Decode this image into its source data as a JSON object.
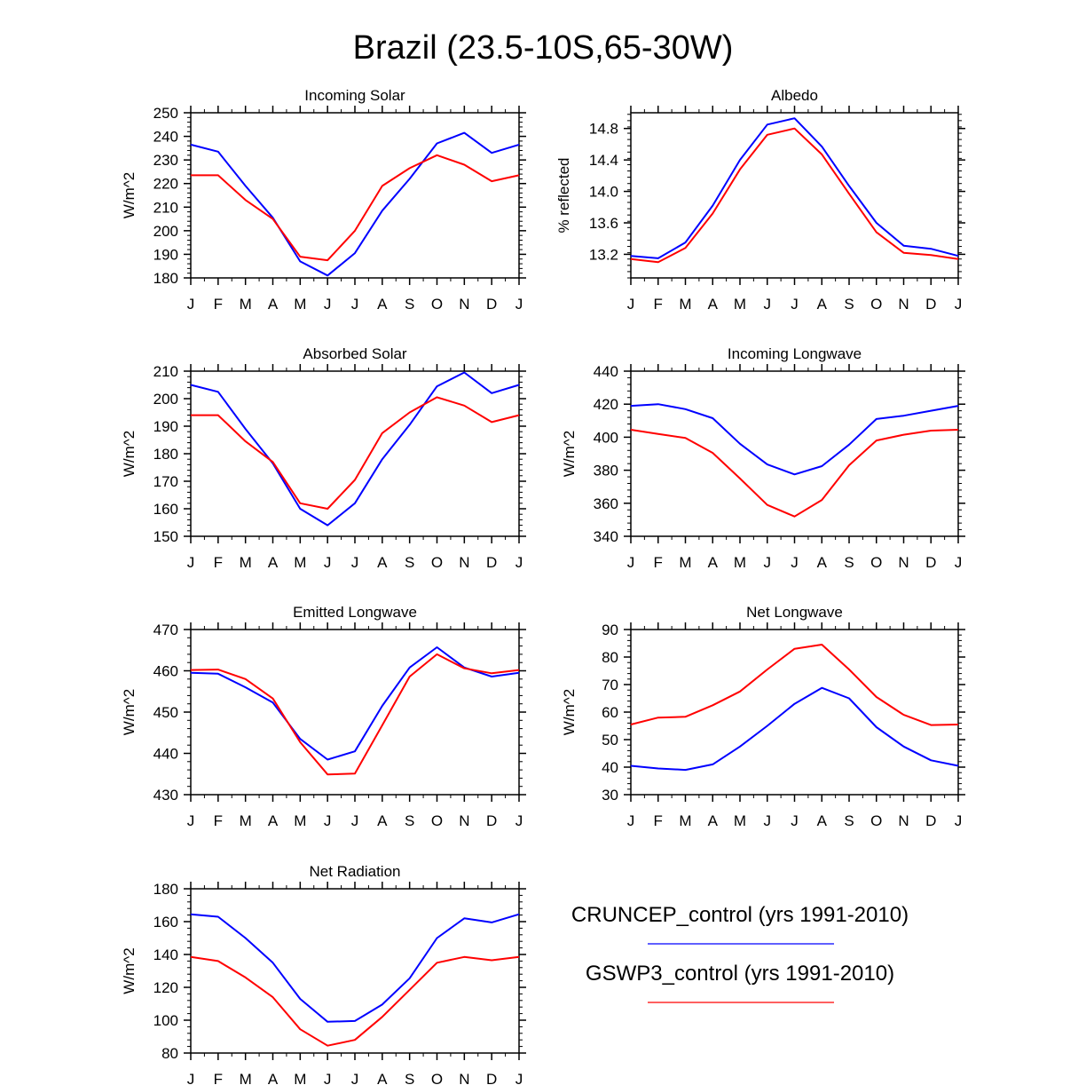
{
  "figure_title": "Brazil (23.5-10S,65-30W)",
  "months": [
    "J",
    "F",
    "M",
    "A",
    "M",
    "J",
    "J",
    "A",
    "S",
    "O",
    "N",
    "D",
    "J"
  ],
  "legend": {
    "entries": [
      {
        "label": "CRUNCEP_control (yrs 1991-2010)",
        "color": "#0000ff"
      },
      {
        "label": "GSWP3_control (yrs 1991-2010)",
        "color": "#ff0000"
      }
    ]
  },
  "chart_data": [
    {
      "type": "line",
      "title": "Incoming Solar",
      "ylabel": "W/m^2",
      "ylim": [
        180,
        250
      ],
      "yticks": [
        180,
        190,
        200,
        210,
        220,
        230,
        240,
        250
      ],
      "tick_labels": [
        "180",
        "190",
        "200",
        "210",
        "220",
        "230",
        "240",
        "250"
      ],
      "series": [
        {
          "name": "CRUNCEP_control (yrs 1991-2010)",
          "color": "#0000ff",
          "values": [
            236.5,
            233.5,
            219,
            205.5,
            187,
            181,
            190.5,
            208.5,
            222,
            237,
            241.5,
            233,
            236.5
          ]
        },
        {
          "name": "GSWP3_control (yrs 1991-2010)",
          "color": "#ff0000",
          "values": [
            223.5,
            223.5,
            213,
            205,
            189,
            187.5,
            200,
            219,
            226.5,
            232,
            228,
            221,
            223.5
          ]
        }
      ]
    },
    {
      "type": "line",
      "title": "Albedo",
      "ylabel": "% reflected",
      "ylim": [
        12.9,
        15.0
      ],
      "yticks": [
        13.2,
        13.6,
        14.0,
        14.4,
        14.8
      ],
      "tick_labels": [
        "13.2",
        "13.6",
        "14.0",
        "14.4",
        "14.8"
      ],
      "series": [
        {
          "name": "CRUNCEP_control (yrs 1991-2010)",
          "color": "#0000ff",
          "values": [
            13.18,
            13.15,
            13.35,
            13.82,
            14.4,
            14.85,
            14.93,
            14.57,
            14.07,
            13.6,
            13.31,
            13.27,
            13.18
          ]
        },
        {
          "name": "GSWP3_control (yrs 1991-2010)",
          "color": "#ff0000",
          "values": [
            13.14,
            13.1,
            13.28,
            13.72,
            14.28,
            14.72,
            14.8,
            14.47,
            13.97,
            13.48,
            13.22,
            13.19,
            13.14
          ]
        }
      ]
    },
    {
      "type": "line",
      "title": "Absorbed Solar",
      "ylabel": "W/m^2",
      "ylim": [
        150,
        210
      ],
      "yticks": [
        150,
        160,
        170,
        180,
        190,
        200,
        210
      ],
      "tick_labels": [
        "150",
        "160",
        "170",
        "180",
        "190",
        "200",
        "210"
      ],
      "series": [
        {
          "name": "CRUNCEP_control (yrs 1991-2010)",
          "color": "#0000ff",
          "values": [
            205,
            202.5,
            189,
            176.5,
            160,
            154,
            162,
            178,
            190.5,
            204.5,
            209.5,
            202,
            205
          ]
        },
        {
          "name": "GSWP3_control (yrs 1991-2010)",
          "color": "#ff0000",
          "values": [
            194,
            194,
            184.5,
            177,
            162,
            160,
            170.5,
            187.5,
            195,
            200.5,
            197.5,
            191.5,
            194
          ]
        }
      ]
    },
    {
      "type": "line",
      "title": "Incoming Longwave",
      "ylabel": "W/m^2",
      "ylim": [
        340,
        440
      ],
      "yticks": [
        340,
        360,
        380,
        400,
        420,
        440
      ],
      "tick_labels": [
        "340",
        "360",
        "380",
        "400",
        "420",
        "440"
      ],
      "series": [
        {
          "name": "CRUNCEP_control (yrs 1991-2010)",
          "color": "#0000ff",
          "values": [
            419,
            420,
            417,
            411.5,
            396,
            383.5,
            377.5,
            382.5,
            395.5,
            411,
            413,
            416,
            419
          ]
        },
        {
          "name": "GSWP3_control (yrs 1991-2010)",
          "color": "#ff0000",
          "values": [
            404.5,
            402,
            399.5,
            390.5,
            375,
            359,
            352,
            362,
            383,
            398,
            401.5,
            404,
            404.5
          ]
        }
      ]
    },
    {
      "type": "line",
      "title": "Emitted Longwave",
      "ylabel": "W/m^2",
      "ylim": [
        430,
        470
      ],
      "yticks": [
        430,
        440,
        450,
        460,
        470
      ],
      "tick_labels": [
        "430",
        "440",
        "450",
        "460",
        "470"
      ],
      "series": [
        {
          "name": "CRUNCEP_control (yrs 1991-2010)",
          "color": "#0000ff",
          "values": [
            459.5,
            459.3,
            456,
            452.3,
            443.5,
            438.5,
            440.5,
            451.5,
            460.8,
            465.7,
            460.8,
            458.6,
            459.5
          ]
        },
        {
          "name": "GSWP3_control (yrs 1991-2010)",
          "color": "#ff0000",
          "values": [
            460.2,
            460.3,
            458,
            453.3,
            442.7,
            434.9,
            435.1,
            446.8,
            458.6,
            464,
            460.6,
            459.4,
            460.2
          ]
        }
      ]
    },
    {
      "type": "line",
      "title": "Net Longwave",
      "ylabel": "W/m^2",
      "ylim": [
        30,
        90
      ],
      "yticks": [
        30,
        40,
        50,
        60,
        70,
        80,
        90
      ],
      "tick_labels": [
        "30",
        "40",
        "50",
        "60",
        "70",
        "80",
        "90"
      ],
      "series": [
        {
          "name": "CRUNCEP_control (yrs 1991-2010)",
          "color": "#0000ff",
          "values": [
            40.5,
            39.5,
            39,
            41,
            47.5,
            55,
            63,
            68.8,
            65,
            54.5,
            47.5,
            42.5,
            40.5
          ]
        },
        {
          "name": "GSWP3_control (yrs 1991-2010)",
          "color": "#ff0000",
          "values": [
            55.5,
            58,
            58.3,
            62.5,
            67.5,
            75.5,
            83,
            84.5,
            75.5,
            65.5,
            59,
            55.3,
            55.5
          ]
        }
      ]
    },
    {
      "type": "line",
      "title": "Net Radiation",
      "ylabel": "W/m^2",
      "ylim": [
        80,
        180
      ],
      "yticks": [
        80,
        100,
        120,
        140,
        160,
        180
      ],
      "tick_labels": [
        "80",
        "100",
        "120",
        "140",
        "160",
        "180"
      ],
      "series": [
        {
          "name": "CRUNCEP_control (yrs 1991-2010)",
          "color": "#0000ff",
          "values": [
            164.5,
            163,
            150,
            135,
            113,
            99,
            99.5,
            109.5,
            125.5,
            150,
            162,
            159.5,
            164.5
          ]
        },
        {
          "name": "GSWP3_control (yrs 1991-2010)",
          "color": "#ff0000",
          "values": [
            138.5,
            136,
            126,
            114,
            94.5,
            84.5,
            88,
            102,
            118.5,
            135,
            138.5,
            136.5,
            138.5
          ]
        }
      ]
    }
  ]
}
